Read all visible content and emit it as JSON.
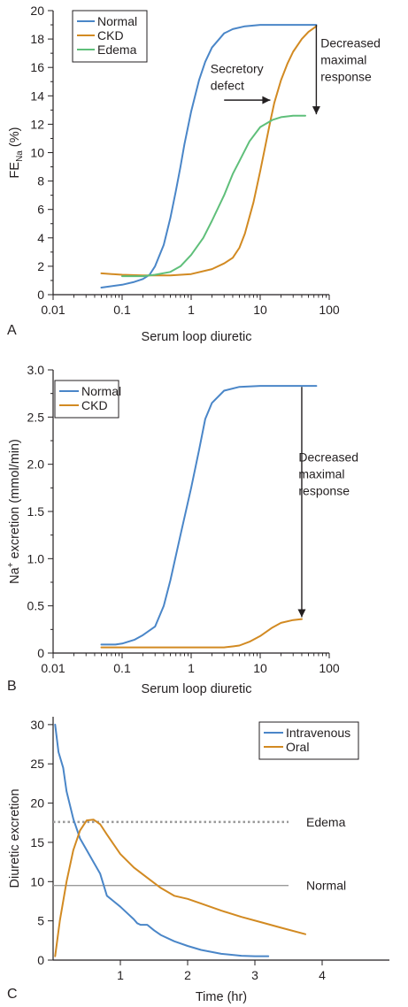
{
  "colors": {
    "normal": "#4a86c8",
    "ckd": "#d28a22",
    "edema": "#5fbf7a",
    "axis": "#231f20",
    "ref_line": "#9a9a9a"
  },
  "chart_data": [
    {
      "panel_label": "A",
      "type": "line",
      "xscale": "log",
      "xlim": [
        0.01,
        100
      ],
      "ylim": [
        0,
        20
      ],
      "xlabel": "Serum loop diuretic",
      "ylabel_main": "FE",
      "ylabel_sub": "Na",
      "ylabel_unit": " (%)",
      "xticks": [
        0.01,
        0.1,
        1,
        10,
        100
      ],
      "xtick_labels": [
        "0.01",
        "0.1",
        "1",
        "10",
        "100"
      ],
      "yticks": [
        0,
        2,
        4,
        6,
        8,
        10,
        12,
        14,
        16,
        18,
        20
      ],
      "ytick_labels": [
        "0",
        "2",
        "4",
        "6",
        "8",
        "10",
        "12",
        "14",
        "16",
        "18",
        "20"
      ],
      "legend": "top-left",
      "series": [
        {
          "name": "Normal",
          "color_key": "normal",
          "x": [
            0.05,
            0.1,
            0.15,
            0.2,
            0.25,
            0.3,
            0.4,
            0.5,
            0.6,
            0.7,
            0.8,
            1,
            1.3,
            1.6,
            2,
            3,
            4,
            6,
            10,
            20,
            40,
            65
          ],
          "y": [
            0.5,
            0.7,
            0.9,
            1.1,
            1.4,
            2.0,
            3.5,
            5.4,
            7.3,
            9.0,
            10.6,
            12.9,
            15.1,
            16.4,
            17.4,
            18.4,
            18.7,
            18.9,
            19.0,
            19.0,
            19.0,
            19.0
          ]
        },
        {
          "name": "CKD",
          "color_key": "ckd",
          "x": [
            0.05,
            0.1,
            0.2,
            0.5,
            1,
            2,
            3,
            4,
            5,
            6,
            8,
            10,
            12,
            14,
            16,
            20,
            25,
            30,
            40,
            50,
            65
          ],
          "y": [
            1.5,
            1.4,
            1.35,
            1.35,
            1.45,
            1.8,
            2.2,
            2.6,
            3.3,
            4.3,
            6.5,
            8.7,
            10.6,
            12.2,
            13.5,
            15.1,
            16.3,
            17.1,
            18.0,
            18.5,
            18.9
          ]
        },
        {
          "name": "Edema",
          "color_key": "edema",
          "x": [
            0.1,
            0.2,
            0.3,
            0.5,
            0.7,
            1,
            1.5,
            2,
            3,
            4,
            5,
            7,
            10,
            15,
            20,
            30,
            45
          ],
          "y": [
            1.3,
            1.3,
            1.4,
            1.6,
            2.0,
            2.8,
            4.0,
            5.2,
            7.0,
            8.5,
            9.4,
            10.8,
            11.8,
            12.3,
            12.5,
            12.6,
            12.6
          ]
        }
      ],
      "annotations": [
        {
          "id": "secretory",
          "lines": [
            "Secretory",
            "defect"
          ],
          "tx": 1.9,
          "ty": 15.6,
          "arrow": {
            "x1": 3.0,
            "y1": 13.7,
            "x2": 14.0,
            "y2": 13.7
          }
        },
        {
          "id": "decreased",
          "lines": [
            "Decreased",
            "maximal",
            "response"
          ],
          "tx": 75,
          "ty": 17.4,
          "arrow": {
            "x1": 65,
            "y1": 19.0,
            "x2": 65,
            "y2": 12.7
          }
        }
      ]
    },
    {
      "panel_label": "B",
      "type": "line",
      "xscale": "log",
      "xlim": [
        0.01,
        100
      ],
      "ylim": [
        0,
        3.0
      ],
      "xlabel": "Serum loop diuretic",
      "ylabel_main": "Na",
      "ylabel_sup": "+",
      "ylabel_unit": " excretion (mmol/min)",
      "xticks": [
        0.01,
        0.1,
        1,
        10,
        100
      ],
      "xtick_labels": [
        "0.01",
        "0.1",
        "1",
        "10",
        "100"
      ],
      "yticks": [
        0,
        0.5,
        1.0,
        1.5,
        2.0,
        2.5,
        3.0
      ],
      "ytick_labels": [
        "0",
        "0.5",
        "1.0",
        "1.5",
        "2.0",
        "2.5",
        "3.0"
      ],
      "legend": "top-left",
      "series": [
        {
          "name": "Normal",
          "color_key": "normal",
          "x": [
            0.05,
            0.08,
            0.1,
            0.15,
            0.2,
            0.3,
            0.4,
            0.5,
            0.7,
            1,
            1.3,
            1.6,
            2,
            3,
            5,
            10,
            20,
            40,
            65
          ],
          "y": [
            0.09,
            0.09,
            0.1,
            0.14,
            0.19,
            0.28,
            0.5,
            0.77,
            1.25,
            1.75,
            2.15,
            2.48,
            2.65,
            2.78,
            2.82,
            2.83,
            2.83,
            2.83,
            2.83
          ]
        },
        {
          "name": "CKD",
          "color_key": "ckd",
          "x": [
            0.05,
            0.1,
            0.5,
            1,
            2,
            3,
            4,
            5,
            7,
            10,
            15,
            20,
            30,
            40
          ],
          "y": [
            0.06,
            0.06,
            0.06,
            0.06,
            0.06,
            0.06,
            0.07,
            0.08,
            0.12,
            0.18,
            0.27,
            0.32,
            0.35,
            0.36
          ]
        }
      ],
      "annotations": [
        {
          "id": "decreased",
          "lines": [
            "Decreased",
            "maximal",
            "response"
          ],
          "tx": 36,
          "ty": 2.03,
          "arrow": {
            "x1": 40,
            "y1": 2.82,
            "x2": 40,
            "y2": 0.38
          }
        }
      ]
    },
    {
      "panel_label": "C",
      "type": "line",
      "xscale": "linear",
      "xlim": [
        0,
        5
      ],
      "ylim": [
        0,
        31
      ],
      "xlabel": "Time (hr)",
      "ylabel_main": "Diuretic excretion",
      "xticks": [
        1,
        2,
        3,
        4
      ],
      "xtick_labels": [
        "1",
        "2",
        "3",
        "4"
      ],
      "yticks": [
        0,
        5,
        10,
        15,
        20,
        25,
        30
      ],
      "ytick_labels": [
        "0",
        "5",
        "10",
        "15",
        "20",
        "25",
        "30"
      ],
      "legend": "top-right",
      "reference_lines": [
        {
          "label": "Edema",
          "y": 17.6,
          "style": "dotted",
          "x_from": 0,
          "x_to": 3.5
        },
        {
          "label": "Normal",
          "y": 9.5,
          "style": "solid",
          "x_from": 0,
          "x_to": 3.5
        }
      ],
      "series": [
        {
          "name": "Intravenous",
          "color_key": "normal",
          "x": [
            0.03,
            0.08,
            0.15,
            0.2,
            0.3,
            0.4,
            0.5,
            0.6,
            0.7,
            0.8,
            0.9,
            1.0,
            1.1,
            1.2,
            1.25,
            1.3,
            1.4,
            1.5,
            1.6,
            1.8,
            2.0,
            2.2,
            2.5,
            2.8,
            3.0,
            3.2
          ],
          "y": [
            30,
            26.5,
            24.5,
            21.5,
            18.0,
            15.5,
            14.0,
            12.5,
            11.0,
            8.2,
            7.5,
            6.8,
            6.0,
            5.2,
            4.7,
            4.5,
            4.5,
            3.8,
            3.2,
            2.4,
            1.8,
            1.3,
            0.8,
            0.55,
            0.5,
            0.5
          ]
        },
        {
          "name": "Oral",
          "color_key": "ckd",
          "x": [
            0.03,
            0.1,
            0.2,
            0.3,
            0.4,
            0.5,
            0.6,
            0.7,
            0.8,
            1.0,
            1.2,
            1.4,
            1.6,
            1.8,
            2.0,
            2.2,
            2.5,
            2.8,
            3.1,
            3.4,
            3.75
          ],
          "y": [
            0.5,
            5.0,
            10.0,
            14.0,
            16.5,
            17.8,
            17.9,
            17.3,
            16.0,
            13.5,
            11.8,
            10.5,
            9.2,
            8.2,
            7.8,
            7.2,
            6.3,
            5.5,
            4.8,
            4.1,
            3.3
          ]
        }
      ]
    }
  ]
}
